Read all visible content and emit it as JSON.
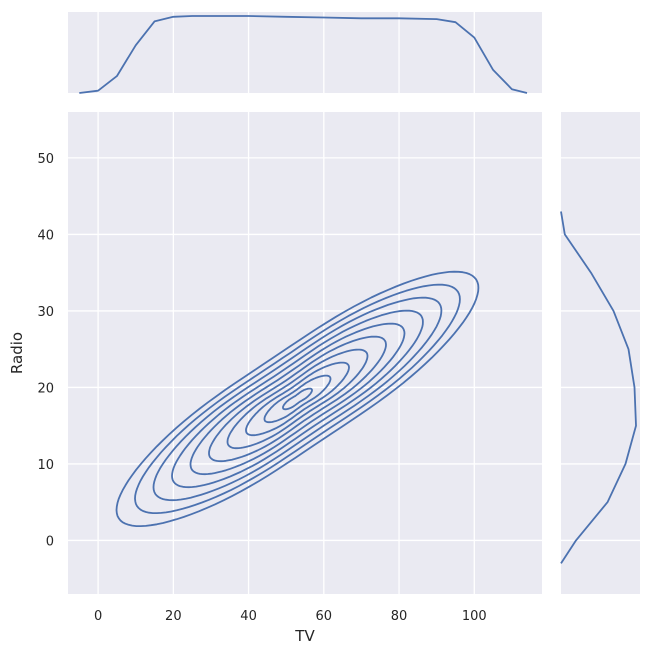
{
  "chart_data": {
    "type": "kde-jointplot",
    "xlabel": "TV",
    "ylabel": "Radio",
    "xlim": [
      -8,
      118
    ],
    "ylim": [
      -7,
      56
    ],
    "xticks": [
      0,
      20,
      40,
      60,
      80,
      100
    ],
    "yticks": [
      0,
      10,
      20,
      30,
      40,
      50
    ],
    "grid": true,
    "background": "#eaeaf2",
    "line_color": "#4c72b0",
    "contour_levels": 10,
    "joint_distribution": {
      "main_axis_from": [
        18,
        7
      ],
      "main_axis_to": [
        88,
        30
      ],
      "spread_min": [
        4,
        1
      ],
      "spread_max": [
        50,
        11
      ],
      "extent_x": [
        0,
        110
      ],
      "extent_y": [
        -3,
        42
      ]
    },
    "marginal_x": {
      "x": [
        -5,
        0,
        5,
        10,
        15,
        20,
        25,
        30,
        40,
        50,
        60,
        70,
        80,
        90,
        95,
        100,
        105,
        110,
        114
      ],
      "density": [
        0.0,
        0.03,
        0.22,
        0.62,
        0.93,
        0.99,
        1.0,
        1.0,
        1.0,
        0.99,
        0.98,
        0.97,
        0.97,
        0.96,
        0.92,
        0.72,
        0.3,
        0.05,
        0.0
      ]
    },
    "marginal_y": {
      "y": [
        -3,
        0,
        5,
        10,
        15,
        20,
        25,
        30,
        35,
        40,
        43
      ],
      "density": [
        0.0,
        0.2,
        0.62,
        0.86,
        1.0,
        0.98,
        0.9,
        0.7,
        0.4,
        0.05,
        0.0
      ]
    }
  }
}
